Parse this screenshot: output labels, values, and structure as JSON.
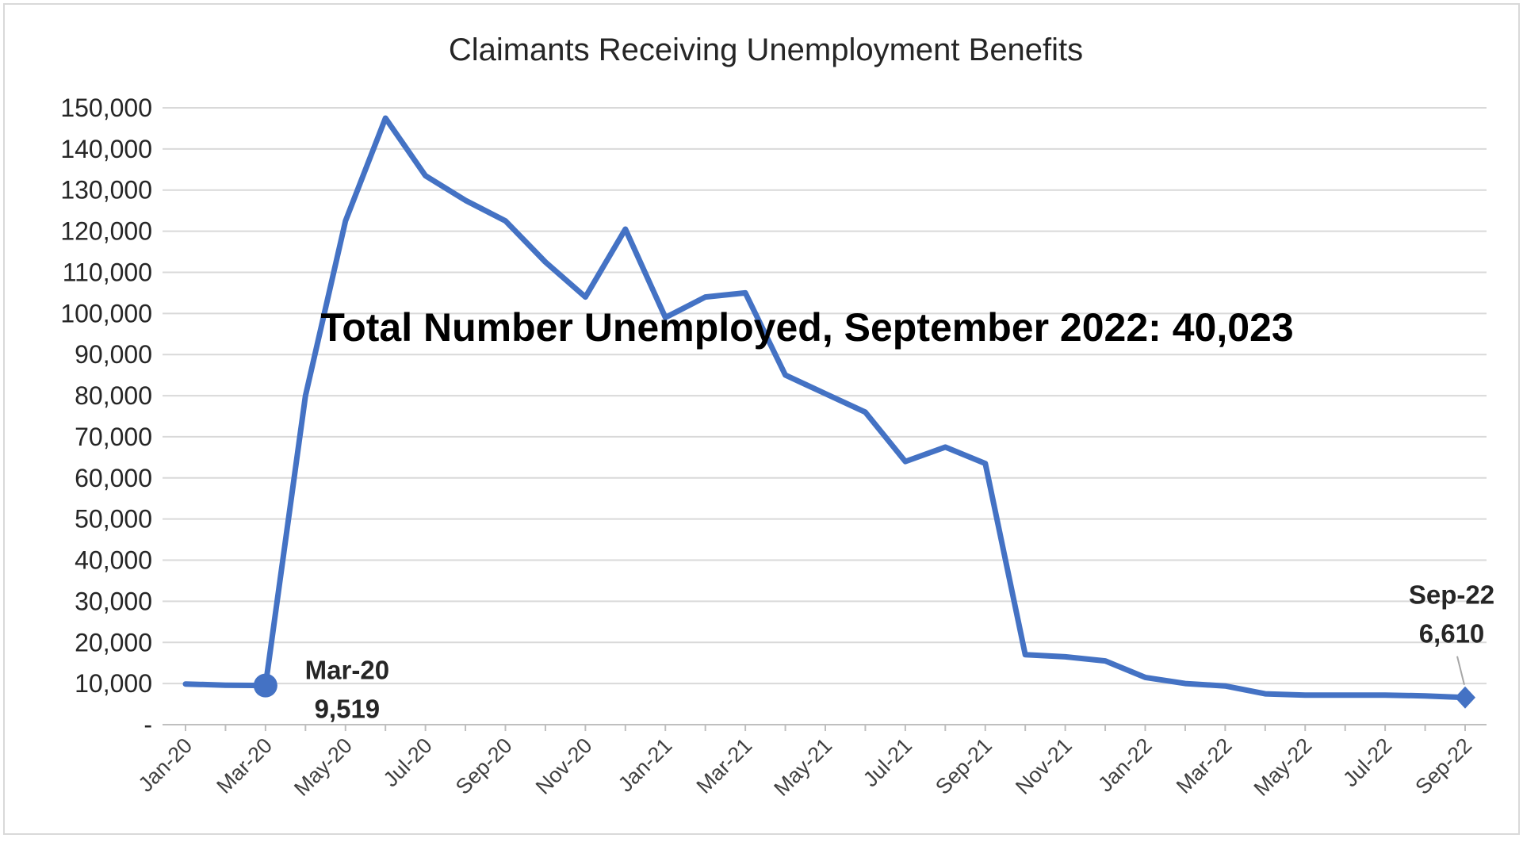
{
  "chart_data": {
    "type": "line",
    "title": "Claimants Receiving Unemployment Benefits",
    "xlabel": "",
    "ylabel": "",
    "ylim": [
      0,
      150000
    ],
    "yticks": [
      0,
      10000,
      20000,
      30000,
      40000,
      50000,
      60000,
      70000,
      80000,
      90000,
      100000,
      110000,
      120000,
      130000,
      140000,
      150000
    ],
    "ytick_labels": [
      "-",
      "10,000",
      "20,000",
      "30,000",
      "40,000",
      "50,000",
      "60,000",
      "70,000",
      "80,000",
      "90,000",
      "100,000",
      "110,000",
      "120,000",
      "130,000",
      "140,000",
      "150,000"
    ],
    "grid": true,
    "legend": "none",
    "categories": [
      "Jan-20",
      "Feb-20",
      "Mar-20",
      "Apr-20",
      "May-20",
      "Jun-20",
      "Jul-20",
      "Aug-20",
      "Sep-20",
      "Oct-20",
      "Nov-20",
      "Dec-20",
      "Jan-21",
      "Feb-21",
      "Mar-21",
      "Apr-21",
      "May-21",
      "Jun-21",
      "Jul-21",
      "Aug-21",
      "Sep-21",
      "Oct-21",
      "Nov-21",
      "Dec-21",
      "Jan-22",
      "Feb-22",
      "Mar-22",
      "Apr-22",
      "May-22",
      "Jun-22",
      "Jul-22",
      "Aug-22",
      "Sep-22"
    ],
    "tick_labels": [
      "Jan-20",
      "Mar-20",
      "May-20",
      "Jul-20",
      "Sep-20",
      "Nov-20",
      "Jan-21",
      "Mar-21",
      "May-21",
      "Jul-21",
      "Sep-21",
      "Nov-21",
      "Jan-22",
      "Mar-22",
      "May-22",
      "Jul-22",
      "Sep-22"
    ],
    "values": [
      9900,
      9600,
      9519,
      80000,
      122500,
      147500,
      133500,
      127500,
      122500,
      112500,
      104000,
      120500,
      99000,
      104000,
      105000,
      85000,
      80500,
      76000,
      64000,
      67500,
      63500,
      17000,
      16500,
      15500,
      11500,
      10000,
      9400,
      7500,
      7200,
      7200,
      7200,
      7000,
      6610
    ],
    "color": "#4472c4",
    "annotations": [
      {
        "text": "Total Number Unemployed, September 2022: 40,023"
      },
      {
        "category": "Mar-20",
        "label": "Mar-20",
        "value_label": "9,519"
      },
      {
        "category": "Sep-22",
        "label": "Sep-22",
        "value_label": "6,610"
      }
    ]
  }
}
